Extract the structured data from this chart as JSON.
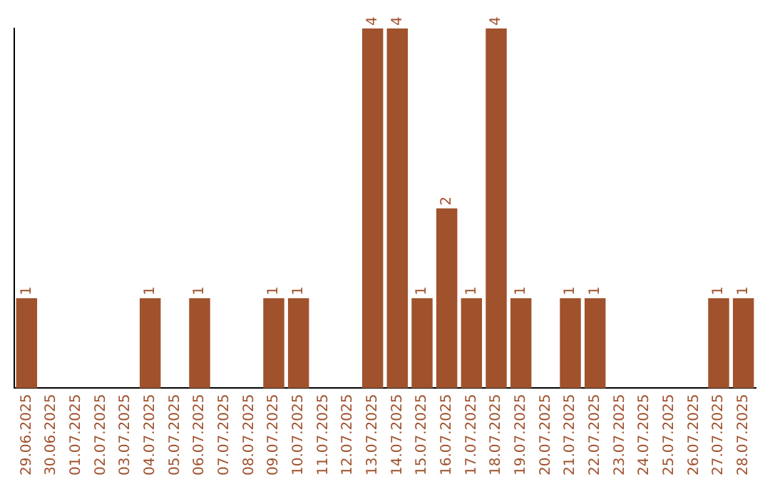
{
  "chart_data": {
    "type": "bar",
    "categories": [
      "29.06.2025",
      "30.06.2025",
      "01.07.2025",
      "02.07.2025",
      "03.07.2025",
      "04.07.2025",
      "05.07.2025",
      "06.07.2025",
      "07.07.2025",
      "08.07.2025",
      "09.07.2025",
      "10.07.2025",
      "11.07.2025",
      "12.07.2025",
      "13.07.2025",
      "14.07.2025",
      "15.07.2025",
      "16.07.2025",
      "17.07.2025",
      "18.07.2025",
      "19.07.2025",
      "20.07.2025",
      "21.07.2025",
      "22.07.2025",
      "23.07.2025",
      "24.07.2025",
      "25.07.2025",
      "26.07.2025",
      "27.07.2025",
      "28.07.2025"
    ],
    "values": [
      1,
      0,
      0,
      0,
      0,
      1,
      0,
      1,
      0,
      0,
      1,
      1,
      0,
      0,
      4,
      4,
      1,
      2,
      1,
      4,
      1,
      0,
      1,
      1,
      0,
      0,
      0,
      0,
      1,
      1
    ],
    "value_labels": [
      "1",
      null,
      null,
      null,
      null,
      "1",
      null,
      "1",
      null,
      null,
      "1",
      "1",
      null,
      null,
      "4",
      "4",
      "1",
      "2",
      "1",
      "4",
      "1",
      null,
      "1",
      "1",
      null,
      null,
      null,
      null,
      "1",
      "1"
    ],
    "color": "#a0522d",
    "ylim": [
      0,
      4
    ],
    "tick_labels": "x",
    "grid": false,
    "legend": false
  }
}
